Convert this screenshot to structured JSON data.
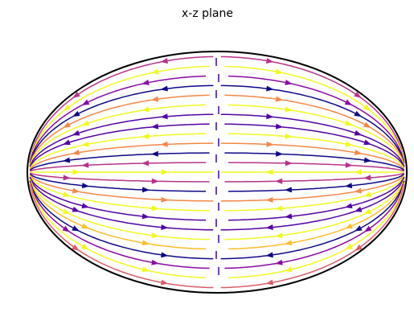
{
  "title": "x-z plane"
}
